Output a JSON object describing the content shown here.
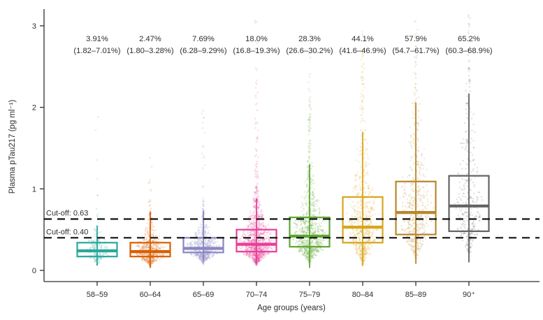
{
  "figure": {
    "background": "#ffffff"
  },
  "chart_data": {
    "type": "box",
    "subtype": "boxplot-with-jittered-points",
    "title": "",
    "xlabel": "Age groups (years)",
    "ylabel": "Plasma pTau217 (pg ml⁻¹)",
    "yticks": [
      "0",
      "1",
      "2",
      "3"
    ],
    "ylim": [
      -0.14,
      3.2
    ],
    "grid": false,
    "legend": "none",
    "cutoffs": [
      {
        "label": "Cut-off: 0.63",
        "value": 0.63
      },
      {
        "label": "Cut-off: 0.40",
        "value": 0.4
      }
    ],
    "categories": [
      "58–59",
      "60–64",
      "65–69",
      "70–74",
      "75–79",
      "80–84",
      "85–89",
      "90⁺"
    ],
    "groups": [
      {
        "label": "58–59",
        "pct": "3.91%",
        "ci": "(1.82–7.01%)",
        "color": "#2aa79b",
        "median": 0.24,
        "q1": 0.17,
        "q3": 0.34,
        "whisker_low": 0.06,
        "whisker_high": 0.55,
        "n": 200,
        "tail_n": 6,
        "tail_max": 1.9,
        "half_width": 20
      },
      {
        "label": "60–64",
        "pct": "2.47%",
        "ci": "(1.80–3.28%)",
        "color": "#d95f02",
        "median": 0.23,
        "q1": 0.17,
        "q3": 0.34,
        "whisker_low": 0.03,
        "whisker_high": 0.72,
        "n": 560,
        "tail_n": 10,
        "tail_max": 1.45,
        "half_width": 26
      },
      {
        "label": "65–69",
        "pct": "7.69%",
        "ci": "(6.28–9.29%)",
        "color": "#8a86c2",
        "median": 0.27,
        "q1": 0.22,
        "q3": 0.4,
        "whisker_low": 0.12,
        "whisker_high": 0.73,
        "n": 660,
        "tail_n": 24,
        "tail_max": 2.05,
        "half_width": 26
      },
      {
        "label": "70–74",
        "pct": "18.0%",
        "ci": "(16.8–19.3%)",
        "color": "#e73f97",
        "median": 0.32,
        "q1": 0.23,
        "q3": 0.5,
        "whisker_low": 0.08,
        "whisker_high": 0.88,
        "n": 1100,
        "tail_n": 70,
        "tail_max": 3.1,
        "half_width": 28
      },
      {
        "label": "75–79",
        "pct": "28.3%",
        "ci": "(26.6–30.2%)",
        "color": "#5fa633",
        "median": 0.42,
        "q1": 0.29,
        "q3": 0.65,
        "whisker_low": 0.03,
        "whisker_high": 1.3,
        "n": 900,
        "tail_n": 45,
        "tail_max": 2.9,
        "half_width": 28
      },
      {
        "label": "80–84",
        "pct": "44.1%",
        "ci": "(41.6–46.9%)",
        "color": "#d9a51e",
        "median": 0.53,
        "q1": 0.34,
        "q3": 0.9,
        "whisker_low": 0.06,
        "whisker_high": 1.7,
        "n": 800,
        "tail_n": 30,
        "tail_max": 3.0,
        "half_width": 26
      },
      {
        "label": "85–89",
        "pct": "57.9%",
        "ci": "(54.7–61.7%)",
        "color": "#b8872b",
        "median": 0.71,
        "q1": 0.44,
        "q3": 1.09,
        "whisker_low": 0.08,
        "whisker_high": 2.06,
        "n": 560,
        "tail_n": 26,
        "tail_max": 3.1,
        "half_width": 26
      },
      {
        "label": "90⁺",
        "pct": "65.2%",
        "ci": "(60.3–68.9%)",
        "color": "#636363",
        "median": 0.79,
        "q1": 0.48,
        "q3": 1.16,
        "whisker_low": 0.1,
        "whisker_high": 2.17,
        "n": 360,
        "tail_n": 22,
        "tail_max": 3.15,
        "half_width": 22
      }
    ],
    "style": {
      "axis_color": "#2e2e2e",
      "cutoff_line_color": "#111111",
      "point_opacity": 0.35
    }
  }
}
